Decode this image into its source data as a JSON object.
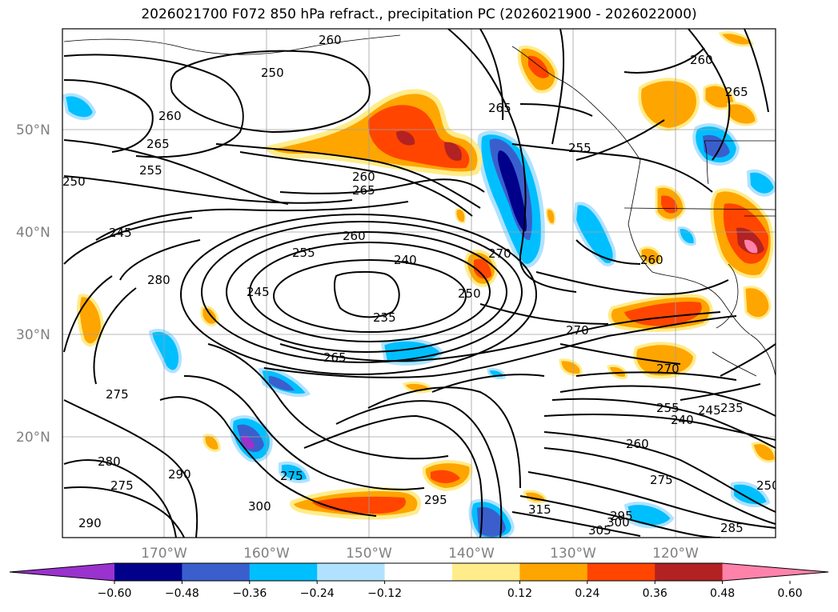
{
  "title": "2026021700 F072 850 hPa refract., precipitation PC (2026021900 - 2026022000)",
  "lat_labels": [
    "50°N",
    "40°N",
    "30°N",
    "20°N"
  ],
  "lon_labels": [
    "170°W",
    "160°W",
    "150°W",
    "140°W",
    "130°W",
    "120°W"
  ],
  "contour_labels": [
    "260",
    "250",
    "255",
    "260",
    "265",
    "255",
    "250",
    "245",
    "265",
    "260",
    "255",
    "240",
    "280",
    "245",
    "235",
    "250",
    "270",
    "265",
    "270",
    "270",
    "275",
    "255",
    "240",
    "245",
    "235",
    "260",
    "280",
    "275",
    "290",
    "275",
    "295",
    "300",
    "315",
    "295",
    "305",
    "300",
    "275",
    "250",
    "285",
    "290",
    "260",
    "265",
    "260",
    "260",
    "265"
  ],
  "colorbar": {
    "ticks": [
      "−0.60",
      "−0.48",
      "−0.36",
      "−0.24",
      "−0.12",
      "0.12",
      "0.24",
      "0.36",
      "0.48",
      "0.60"
    ],
    "colors": [
      "#9a32cd",
      "#00008b",
      "#3a5fcd",
      "#00bfff",
      "#b0e2ff",
      "#ffffff",
      "#ffec8b",
      "#ffa500",
      "#ff4500",
      "#b22222",
      "#ff82ab"
    ]
  }
}
